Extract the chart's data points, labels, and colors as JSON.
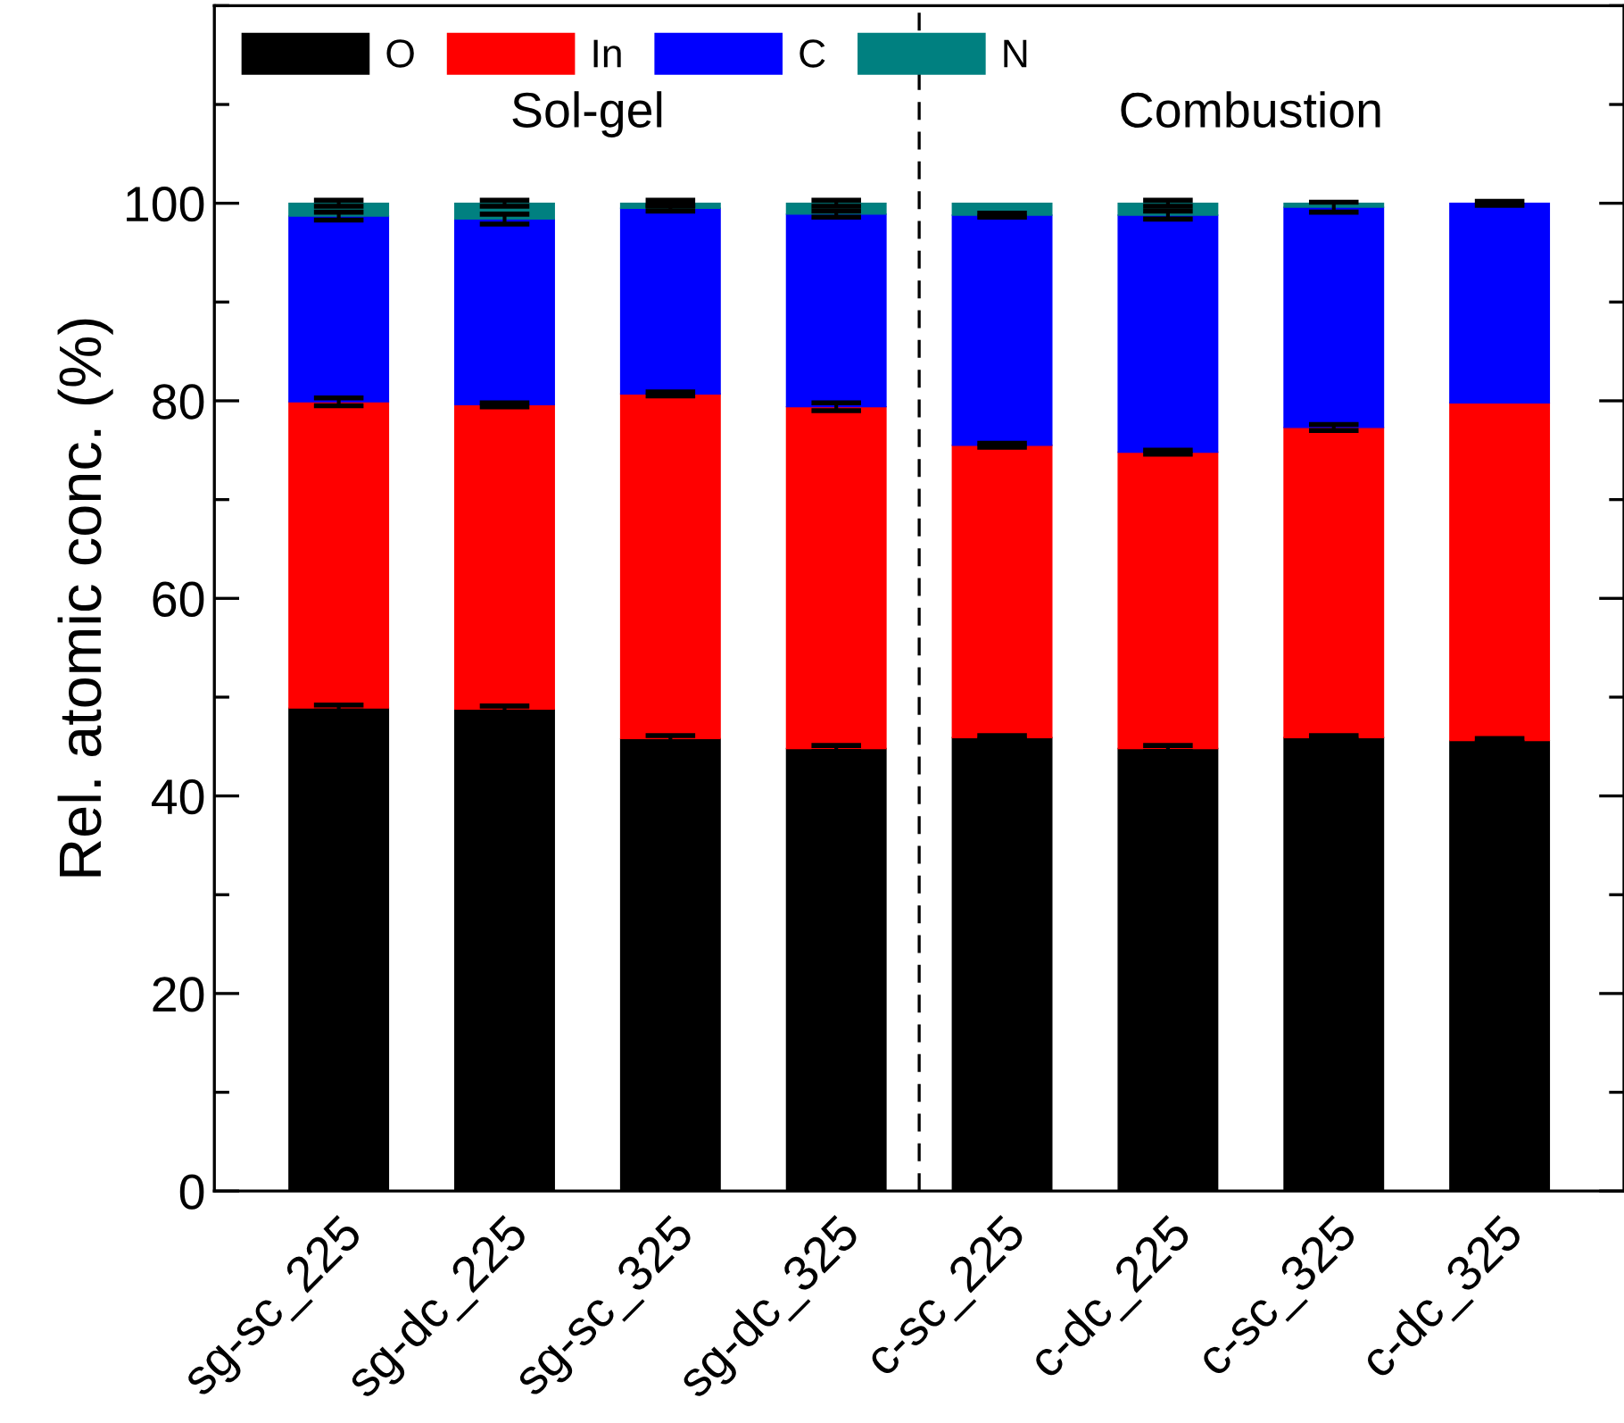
{
  "chart_data": {
    "type": "bar",
    "stacked": true,
    "ylabel": "Rel. atomic conc. (%)",
    "categories": [
      "sg-sc_225",
      "sg-dc_225",
      "sg-sc_325",
      "sg-dc_325",
      "c-sc_225",
      "c-dc_225",
      "c-sc_325",
      "c-dc_325"
    ],
    "series": [
      {
        "name": "O",
        "color": "#000000",
        "values": [
          48.9,
          48.8,
          45.8,
          44.8,
          45.9,
          44.8,
          45.9,
          45.6
        ],
        "errors": [
          0.3,
          0.3,
          0.3,
          0.3,
          0.2,
          0.3,
          0.2,
          0.2
        ]
      },
      {
        "name": "In",
        "color": "#ff0000",
        "values": [
          31.0,
          30.8,
          34.9,
          34.6,
          29.6,
          30.0,
          31.4,
          34.2
        ],
        "errors": [
          0.4,
          0.2,
          0.2,
          0.4,
          0.2,
          0.2,
          0.3,
          null
        ]
      },
      {
        "name": "C",
        "color": "#0000ff",
        "values": [
          18.8,
          18.8,
          18.8,
          19.5,
          23.3,
          24.0,
          22.3,
          20.2
        ],
        "errors": [
          0.4,
          0.5,
          0.3,
          0.3,
          0.2,
          0.4,
          0.5,
          0.2
        ]
      },
      {
        "name": "N",
        "color": "#008080",
        "values": [
          1.3,
          1.6,
          0.5,
          1.1,
          1.2,
          1.2,
          0.4,
          null
        ],
        "errors": [
          0.3,
          0.3,
          0.3,
          0.3,
          null,
          0.3,
          null,
          null
        ]
      }
    ],
    "ylim": [
      0,
      120
    ],
    "yticks": [
      0,
      20,
      40,
      60,
      80,
      100
    ],
    "annotations": [
      "Sol-gel",
      "Combustion"
    ],
    "legend": "top left",
    "grid": false
  }
}
